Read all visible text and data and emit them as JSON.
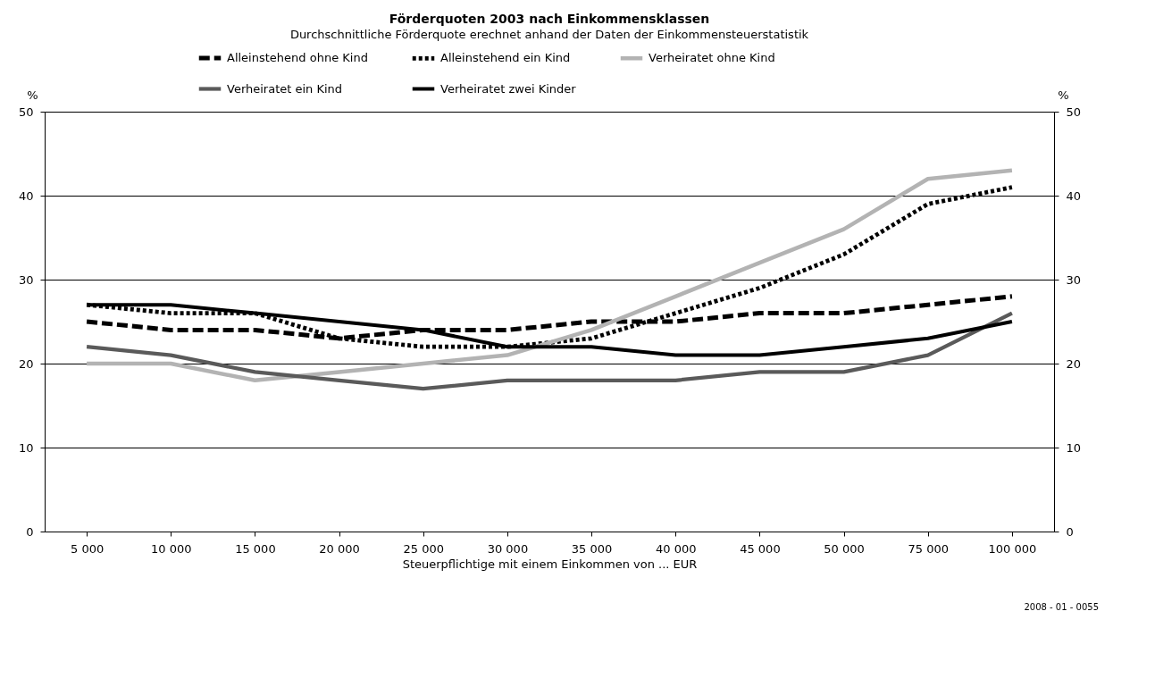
{
  "chart_data": {
    "type": "line",
    "title": "Förderquoten 2003 nach Einkommensklassen",
    "subtitle": "Durchschnittliche Förderquote erechnet anhand der Daten der Einkommensteuerstatistik",
    "xlabel": "Steuerpflichtige mit einem Einkommen von ... EUR",
    "ylabel": "%",
    "y2label": "%",
    "categories": [
      "5 000",
      "10 000",
      "15 000",
      "20 000",
      "25 000",
      "30 000",
      "35 000",
      "40 000",
      "45 000",
      "50 000",
      "75 000",
      "100 000"
    ],
    "series": [
      {
        "name": "Alleinstehend ohne Kind",
        "color": "#000000",
        "line_style": "dashed",
        "values": [
          25,
          24,
          24,
          23,
          24,
          24,
          25,
          25,
          26,
          26,
          27,
          28
        ]
      },
      {
        "name": "Alleinstehend ein Kind",
        "color": "#000000",
        "line_style": "dotted",
        "values": [
          27,
          26,
          26,
          23,
          22,
          22,
          23,
          26,
          29,
          33,
          39,
          41
        ]
      },
      {
        "name": "Verheiratet ohne Kind",
        "color": "#b3b3b3",
        "line_style": "solid",
        "values": [
          20,
          20,
          18,
          19,
          20,
          21,
          24,
          28,
          32,
          36,
          42,
          43
        ]
      },
      {
        "name": "Verheiratet ein Kind",
        "color": "#5a5a5a",
        "line_style": "solid",
        "values": [
          22,
          21,
          19,
          18,
          17,
          18,
          18,
          18,
          19,
          19,
          21,
          26
        ]
      },
      {
        "name": "Verheiratet zwei Kinder",
        "color": "#000000",
        "line_style": "solid",
        "values": [
          27,
          27,
          26,
          25,
          24,
          22,
          22,
          21,
          21,
          22,
          23,
          25
        ]
      }
    ],
    "ylim": [
      0,
      50
    ],
    "yticks": [
      0,
      10,
      20,
      30,
      40,
      50
    ],
    "y2lim": [
      0,
      50
    ],
    "y2ticks": [
      0,
      10,
      20,
      30,
      40,
      50
    ],
    "grid": "y",
    "legend": "top",
    "marker": "none",
    "annotations": [
      "2008 - 01 - 0055"
    ]
  }
}
